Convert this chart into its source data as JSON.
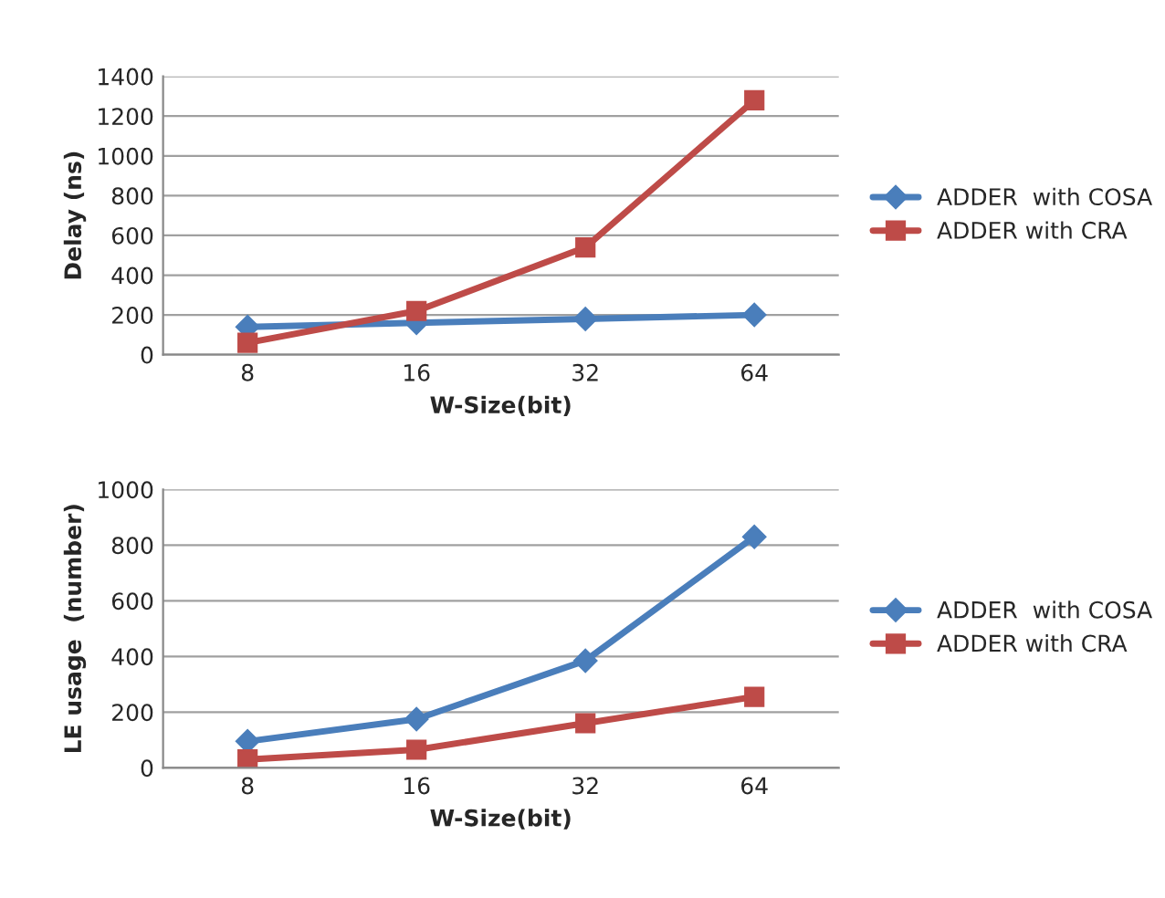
{
  "chart_data": [
    {
      "type": "line",
      "xlabel": "W-Size(bit)",
      "ylabel": "Delay (ns)",
      "categories": [
        "8",
        "16",
        "32",
        "64"
      ],
      "series": [
        {
          "name": "ADDER  with COSA",
          "color": "#4a7ebb",
          "values": [
            140,
            160,
            180,
            200
          ],
          "marker": "diamond"
        },
        {
          "name": "ADDER with CRA",
          "color": "#be4b48",
          "values": [
            60,
            220,
            540,
            1280
          ],
          "marker": "square"
        }
      ],
      "ylim": [
        0,
        1400
      ],
      "yticks": [
        0,
        200,
        400,
        600,
        800,
        1000,
        1200,
        1400
      ],
      "grid": "y",
      "legend": "right"
    },
    {
      "type": "line",
      "xlabel": "W-Size(bit)",
      "ylabel": "LE usage  (number)",
      "categories": [
        "8",
        "16",
        "32",
        "64"
      ],
      "series": [
        {
          "name": "ADDER  with COSA",
          "color": "#4a7ebb",
          "values": [
            95,
            175,
            385,
            830
          ],
          "marker": "diamond"
        },
        {
          "name": "ADDER with CRA",
          "color": "#be4b48",
          "values": [
            30,
            65,
            160,
            255
          ],
          "marker": "square"
        }
      ],
      "ylim": [
        0,
        1000
      ],
      "yticks": [
        0,
        200,
        400,
        600,
        800,
        1000
      ],
      "grid": "y",
      "legend": "right"
    }
  ]
}
